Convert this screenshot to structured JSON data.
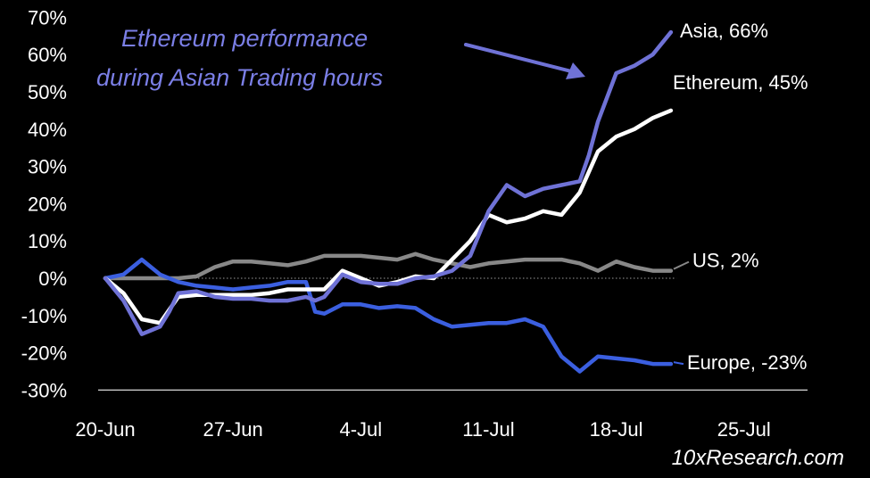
{
  "chart_data": {
    "type": "line",
    "title": "",
    "xlabel": "",
    "ylabel": "",
    "x_tick_labels": [
      "20-Jun",
      "27-Jun",
      "4-Jul",
      "11-Jul",
      "18-Jul",
      "25-Jul"
    ],
    "x_tick_days": [
      0,
      7,
      14,
      21,
      28,
      35
    ],
    "xlim_days": [
      0,
      35
    ],
    "y_tick_labels": [
      "70%",
      "60%",
      "50%",
      "40%",
      "30%",
      "20%",
      "10%",
      "0%",
      "-10%",
      "-20%",
      "-30%"
    ],
    "y_tick_values": [
      70,
      60,
      50,
      40,
      30,
      20,
      10,
      0,
      -10,
      -20,
      -30
    ],
    "ylim": [
      -30,
      70
    ],
    "grid": false,
    "zero_line": "dotted",
    "x_axis_line_at": -30,
    "annotation": {
      "lines": [
        "Ethereum performance",
        "during Asian Trading hours"
      ],
      "color": "#7b7fe6"
    },
    "watermark": "10xResearch.com",
    "series": [
      {
        "key": "asia",
        "label": "Asia, 66%",
        "color": "#6f72d6",
        "label_color": "#ffffff",
        "x": [
          0,
          1,
          2,
          2.5,
          3,
          3.5,
          4,
          5,
          6,
          7,
          8,
          9,
          10,
          11,
          11.5,
          12,
          13,
          14,
          15,
          16,
          17,
          18,
          19,
          20,
          21,
          22,
          23,
          24,
          25,
          26,
          26.5,
          27,
          28,
          29,
          30,
          31
        ],
        "y": [
          0,
          -6,
          -15,
          -14,
          -13,
          -9,
          -4,
          -3.5,
          -5,
          -5.5,
          -5.5,
          -6,
          -6,
          -5,
          -6,
          -5,
          1,
          -1,
          -1.5,
          -1.5,
          0,
          0.5,
          2,
          6,
          18,
          25,
          22,
          24,
          25,
          26,
          33,
          42,
          55,
          57,
          60,
          66
        ]
      },
      {
        "key": "ethereum",
        "label": "Ethereum, 45%",
        "color": "#ffffff",
        "label_color": "#ffffff",
        "x": [
          0,
          1,
          2,
          3,
          4,
          5,
          6,
          7,
          8,
          9,
          10,
          11,
          12,
          13,
          14,
          15,
          16,
          17,
          18,
          19,
          20,
          21,
          22,
          23,
          24,
          25,
          26,
          27,
          28,
          29,
          30,
          31
        ],
        "y": [
          0,
          -4,
          -11,
          -12,
          -5,
          -4.5,
          -4.5,
          -4.5,
          -4.5,
          -4,
          -3,
          -3,
          -3,
          2,
          0,
          -2,
          -1,
          0.5,
          0,
          5,
          10,
          17,
          15,
          16,
          18,
          17,
          23,
          34,
          38,
          40,
          43,
          45
        ]
      },
      {
        "key": "us",
        "label": "US, 2%",
        "color": "#888888",
        "label_color": "#ffffff",
        "x": [
          0,
          1,
          2,
          3,
          4,
          5,
          6,
          7,
          8,
          9,
          10,
          11,
          12,
          13,
          14,
          15,
          16,
          17,
          18,
          19,
          20,
          21,
          22,
          23,
          24,
          25,
          26,
          27,
          28,
          29,
          30,
          31
        ],
        "y": [
          0,
          0,
          0,
          0,
          0,
          0.5,
          3,
          4.5,
          4.5,
          4,
          3.5,
          4.5,
          6,
          6,
          6,
          5.5,
          5,
          6.5,
          5,
          4,
          3,
          4,
          4.5,
          5,
          5,
          5,
          4,
          2,
          4.5,
          3,
          2,
          2
        ]
      },
      {
        "key": "europe",
        "label": "Europe, -23%",
        "color": "#3b5fe0",
        "label_color": "#ffffff",
        "x": [
          0,
          1,
          2,
          3,
          4,
          5,
          6,
          7,
          8,
          9,
          10,
          11,
          11.5,
          12,
          13,
          14,
          15,
          16,
          17,
          18,
          19,
          20,
          21,
          22,
          23,
          24,
          25,
          26,
          27,
          28,
          29,
          30,
          31
        ],
        "y": [
          0,
          1,
          5,
          1,
          -1,
          -2,
          -2.5,
          -3,
          -2.5,
          -2,
          -1,
          -1,
          -9,
          -9.5,
          -7,
          -7,
          -8,
          -7.5,
          -8,
          -11,
          -13,
          -12.5,
          -12,
          -12,
          -11,
          -13,
          -21,
          -25,
          -21,
          -21.5,
          -22,
          -23,
          -23
        ]
      }
    ]
  }
}
